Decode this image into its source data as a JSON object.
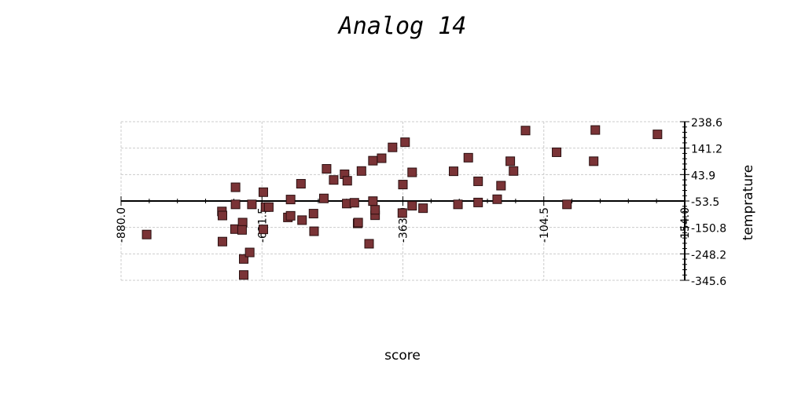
{
  "chart_data": {
    "type": "scatter",
    "title": "Analog 14",
    "xlabel": "score",
    "ylabel": "temprature",
    "xlim": [
      -880.0,
      154.0
    ],
    "ylim": [
      -345.6,
      238.6
    ],
    "x_ticks": [
      "-880.0",
      "-621.5",
      "-363.0",
      "-104.5",
      "154.0"
    ],
    "y_ticks": [
      "238.6",
      "141.2",
      "43.9",
      "-53.5",
      "-150.8",
      "-248.2",
      "-345.6"
    ],
    "grid": true,
    "marker_color": "#7a3336",
    "marker_edge_color": "#2a0f10",
    "points": [
      {
        "x": -833,
        "y": -177
      },
      {
        "x": -695,
        "y": -92
      },
      {
        "x": -694,
        "y": -107
      },
      {
        "x": -694,
        "y": -203
      },
      {
        "x": -670,
        "y": -3
      },
      {
        "x": -670,
        "y": -66
      },
      {
        "x": -671,
        "y": -157
      },
      {
        "x": -657,
        "y": -133
      },
      {
        "x": -658,
        "y": -160
      },
      {
        "x": -655,
        "y": -267
      },
      {
        "x": -655,
        "y": -326
      },
      {
        "x": -644,
        "y": -243
      },
      {
        "x": -640,
        "y": -66
      },
      {
        "x": -619,
        "y": -21
      },
      {
        "x": -619,
        "y": -158
      },
      {
        "x": -615,
        "y": -76
      },
      {
        "x": -609,
        "y": -76
      },
      {
        "x": -574,
        "y": -114
      },
      {
        "x": -569,
        "y": -48
      },
      {
        "x": -569,
        "y": -108
      },
      {
        "x": -550,
        "y": 10
      },
      {
        "x": -548,
        "y": -124
      },
      {
        "x": -527,
        "y": -100
      },
      {
        "x": -526,
        "y": -165
      },
      {
        "x": -508,
        "y": -44
      },
      {
        "x": -503,
        "y": 65
      },
      {
        "x": -490,
        "y": 24
      },
      {
        "x": -470,
        "y": 45
      },
      {
        "x": -465,
        "y": 21
      },
      {
        "x": -466,
        "y": -63
      },
      {
        "x": -452,
        "y": -60
      },
      {
        "x": -446,
        "y": -136
      },
      {
        "x": -445,
        "y": -133
      },
      {
        "x": -439,
        "y": 57
      },
      {
        "x": -425,
        "y": -211
      },
      {
        "x": -418,
        "y": 95
      },
      {
        "x": -418,
        "y": -54
      },
      {
        "x": -414,
        "y": -106
      },
      {
        "x": -414,
        "y": -86
      },
      {
        "x": -402,
        "y": 104
      },
      {
        "x": -382,
        "y": 144
      },
      {
        "x": -363,
        "y": 7
      },
      {
        "x": -364,
        "y": -98
      },
      {
        "x": -359,
        "y": 163
      },
      {
        "x": -346,
        "y": 52
      },
      {
        "x": -346,
        "y": -71
      },
      {
        "x": -326,
        "y": -80
      },
      {
        "x": -270,
        "y": 56
      },
      {
        "x": -262,
        "y": -66
      },
      {
        "x": -243,
        "y": 106
      },
      {
        "x": -225,
        "y": 19
      },
      {
        "x": -225,
        "y": -59
      },
      {
        "x": -190,
        "y": -47
      },
      {
        "x": -183,
        "y": 3
      },
      {
        "x": -166,
        "y": 93
      },
      {
        "x": -160,
        "y": 57
      },
      {
        "x": -138,
        "y": 206
      },
      {
        "x": -81,
        "y": 126
      },
      {
        "x": -62,
        "y": -66
      },
      {
        "x": -13,
        "y": 93
      },
      {
        "x": -10,
        "y": 208
      },
      {
        "x": 104,
        "y": 192
      }
    ]
  }
}
